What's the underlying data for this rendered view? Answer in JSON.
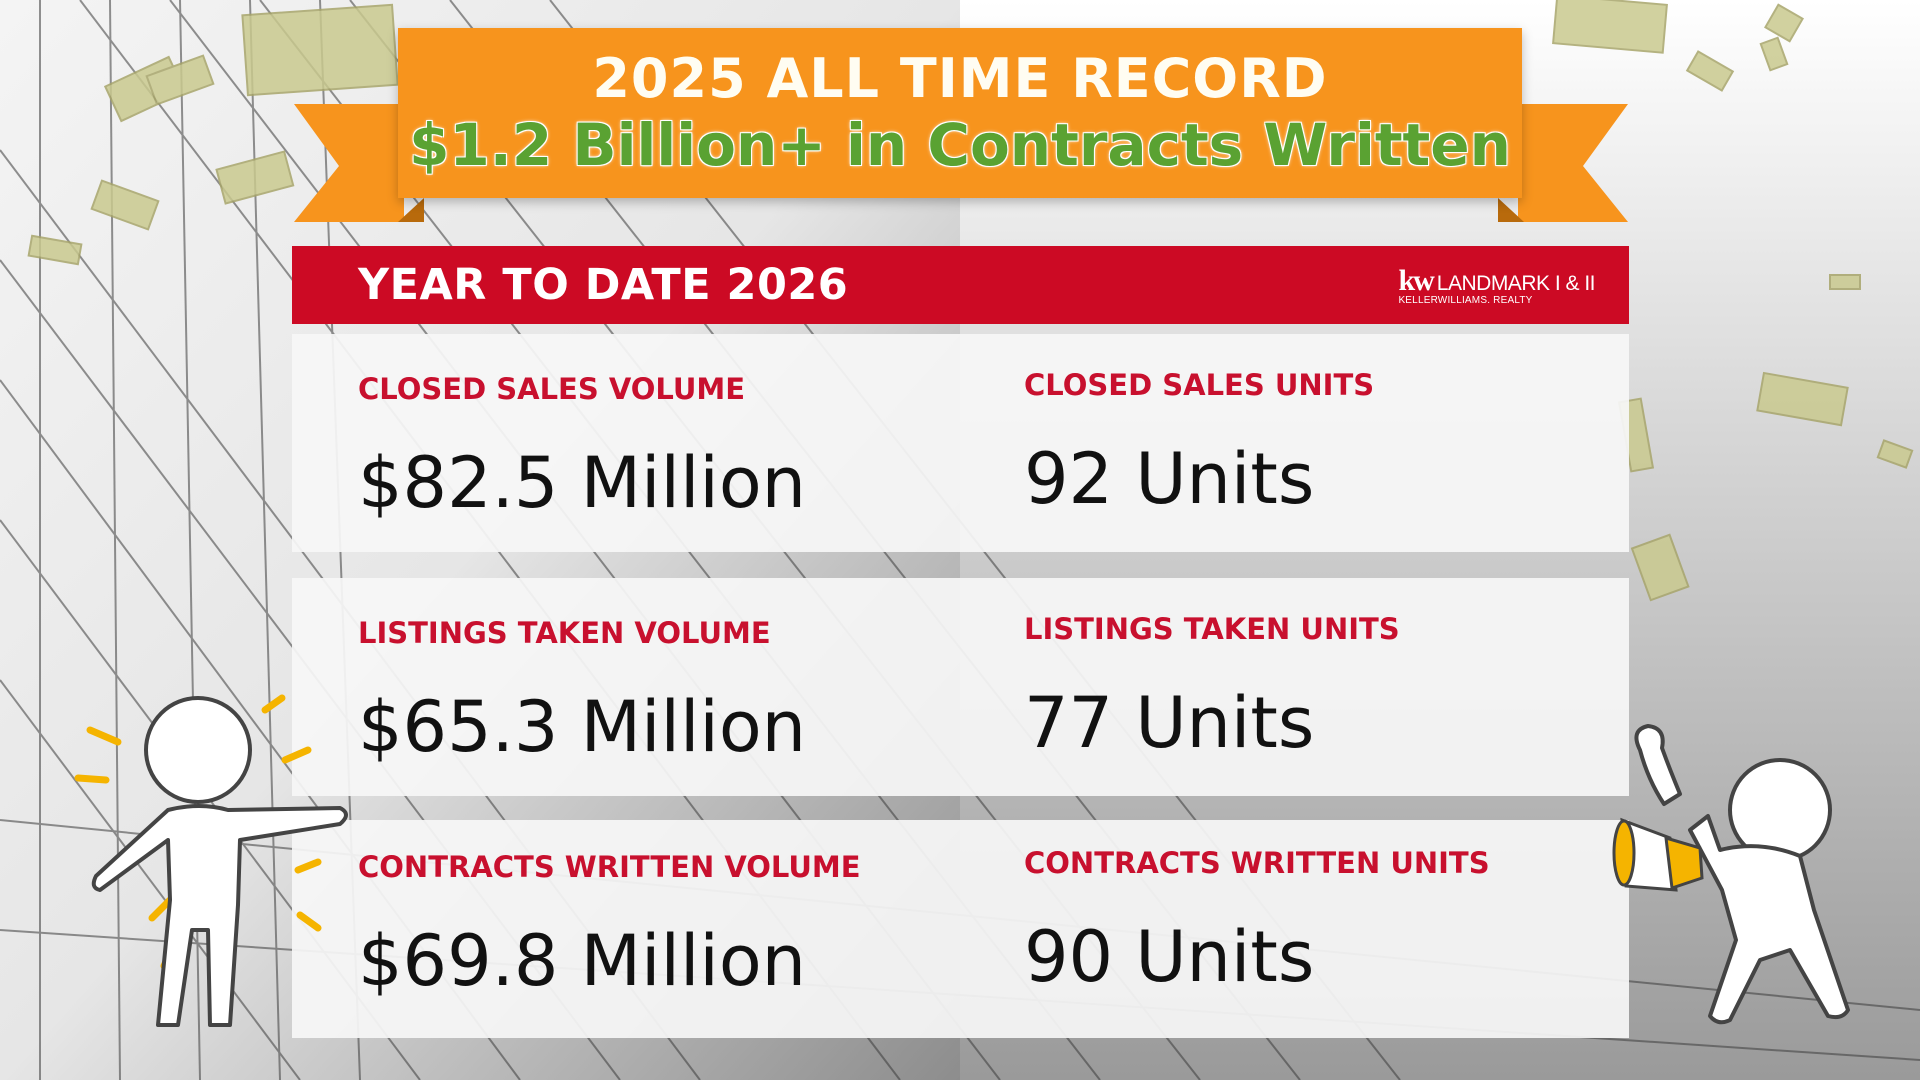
{
  "banner": {
    "line1": "2025 ALL TIME RECORD",
    "line2": "$1.2 Billion+ in Contracts Written"
  },
  "header": {
    "title": "YEAR TO DATE 2026",
    "logo": {
      "kw": "kw",
      "name": "LANDMARK I & II",
      "sub": "KELLERWILLIAMS. REALTY"
    }
  },
  "stats": [
    {
      "left": {
        "label": "CLOSED SALES VOLUME",
        "value": "$82.5 Million"
      },
      "right": {
        "label": "CLOSED SALES UNITS",
        "value": "92 Units"
      }
    },
    {
      "left": {
        "label": "LISTINGS TAKEN VOLUME",
        "value": "$65.3 Million"
      },
      "right": {
        "label": "LISTINGS TAKEN UNITS",
        "value": "77 Units"
      }
    },
    {
      "left": {
        "label": "CONTRACTS WRITTEN VOLUME",
        "value": "$69.8 Million"
      },
      "right": {
        "label": "CONTRACTS WRITTEN UNITS",
        "value": "90 Units"
      }
    }
  ],
  "colors": {
    "banner_orange": "#f7941d",
    "banner_green_text": "#5aa232",
    "header_red": "#cc0a24",
    "label_red": "#c8102e",
    "value_black": "#111111",
    "accent_yellow": "#f5b400"
  },
  "icons": [
    "money-bill-icon",
    "pointing-person-icon",
    "megaphone-person-icon"
  ]
}
